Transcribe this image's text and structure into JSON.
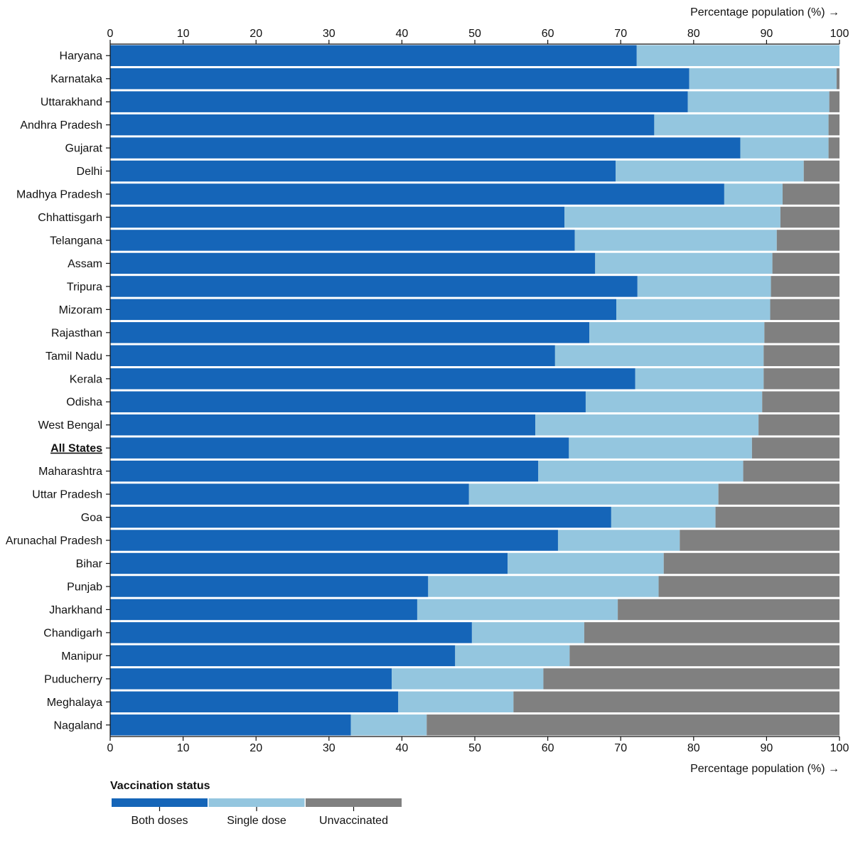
{
  "chart_data": {
    "type": "bar",
    "orientation": "horizontal",
    "stacked": true,
    "xlabel_top": "Percentage population (%) →",
    "xlabel_bottom": "Percentage population (%) →",
    "xlim": [
      0,
      100
    ],
    "xticks": [
      0,
      10,
      20,
      30,
      40,
      50,
      60,
      70,
      80,
      90,
      100
    ],
    "categories": [
      "Haryana",
      "Karnataka",
      "Uttarakhand",
      "Andhra Pradesh",
      "Gujarat",
      "Delhi",
      "Madhya Pradesh",
      "Chhattisgarh",
      "Telangana",
      "Assam",
      "Tripura",
      "Mizoram",
      "Rajasthan",
      "Tamil Nadu",
      "Kerala",
      "Odisha",
      "West Bengal",
      "All States",
      "Maharashtra",
      "Uttar Pradesh",
      "Goa",
      "Arunachal Pradesh",
      "Bihar",
      "Punjab",
      "Jharkhand",
      "Chandigarh",
      "Manipur",
      "Puducherry",
      "Meghalaya",
      "Nagaland"
    ],
    "highlight_category": "All States",
    "series": [
      {
        "name": "Both doses",
        "color": "#1565b8",
        "values": [
          72.2,
          79.4,
          79.2,
          74.6,
          86.4,
          69.3,
          84.2,
          62.3,
          63.7,
          66.5,
          72.3,
          69.4,
          65.7,
          61.0,
          72.0,
          65.2,
          58.3,
          62.9,
          58.7,
          49.2,
          68.7,
          61.4,
          54.5,
          43.6,
          42.1,
          49.6,
          47.3,
          38.6,
          39.5,
          33.0
        ]
      },
      {
        "name": "Single dose",
        "color": "#94c6df",
        "values": [
          27.8,
          20.2,
          19.4,
          23.9,
          12.1,
          25.8,
          8.0,
          29.6,
          27.7,
          24.3,
          18.3,
          21.1,
          24.0,
          28.6,
          17.6,
          24.2,
          30.6,
          25.1,
          28.1,
          34.2,
          14.3,
          16.7,
          21.4,
          31.6,
          27.5,
          15.4,
          15.7,
          20.8,
          15.8,
          10.4
        ]
      },
      {
        "name": "Unvaccinated",
        "color": "#808080",
        "values": [
          0.0,
          0.4,
          1.4,
          1.5,
          1.5,
          4.9,
          7.8,
          8.1,
          8.6,
          9.2,
          9.4,
          9.5,
          10.3,
          10.4,
          10.4,
          10.6,
          11.1,
          12.0,
          13.2,
          16.6,
          17.0,
          21.9,
          24.1,
          24.8,
          30.4,
          35.0,
          37.0,
          40.6,
          44.7,
          56.6
        ]
      }
    ],
    "legend": {
      "title": "Vaccination status",
      "placement": "bottom-left",
      "items": [
        "Both doses",
        "Single dose",
        "Unvaccinated"
      ]
    },
    "grid": false
  }
}
